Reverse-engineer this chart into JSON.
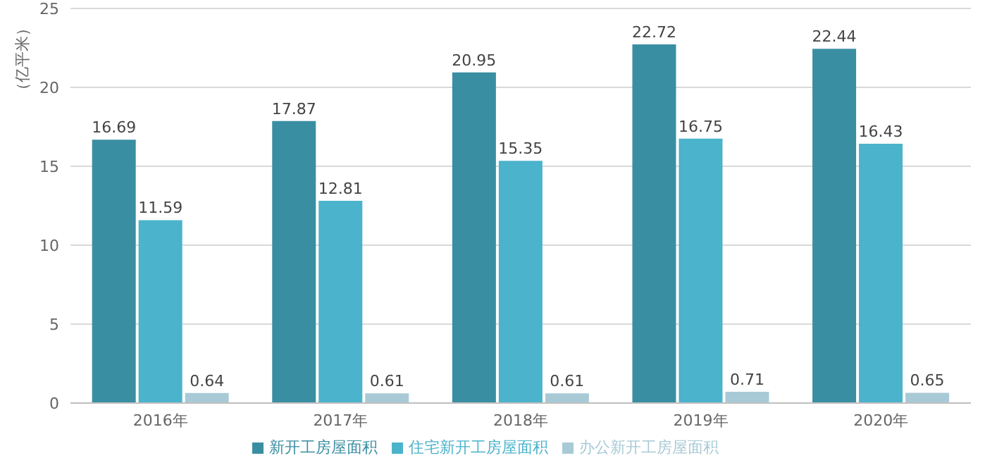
{
  "chart_data": {
    "type": "bar",
    "ylabel": "（亿平米）",
    "categories": [
      "2016年",
      "2017年",
      "2018年",
      "2019年",
      "2020年"
    ],
    "series": [
      {
        "name": "新开工房屋面积",
        "color": "#3a8ea2",
        "values": [
          16.69,
          17.87,
          20.95,
          22.72,
          22.44
        ]
      },
      {
        "name": "住宅新开工房屋面积",
        "color": "#4bb3cb",
        "values": [
          11.59,
          12.81,
          15.35,
          16.75,
          16.43
        ]
      },
      {
        "name": "办公新开工房屋面积",
        "color": "#a8cad6",
        "values": [
          0.64,
          0.61,
          0.61,
          0.71,
          0.65
        ]
      }
    ],
    "ylim": [
      0,
      25
    ],
    "yticks": [
      0,
      5,
      10,
      15,
      20,
      25
    ],
    "grid": "y",
    "legend": "bottom",
    "data_labels": true
  }
}
